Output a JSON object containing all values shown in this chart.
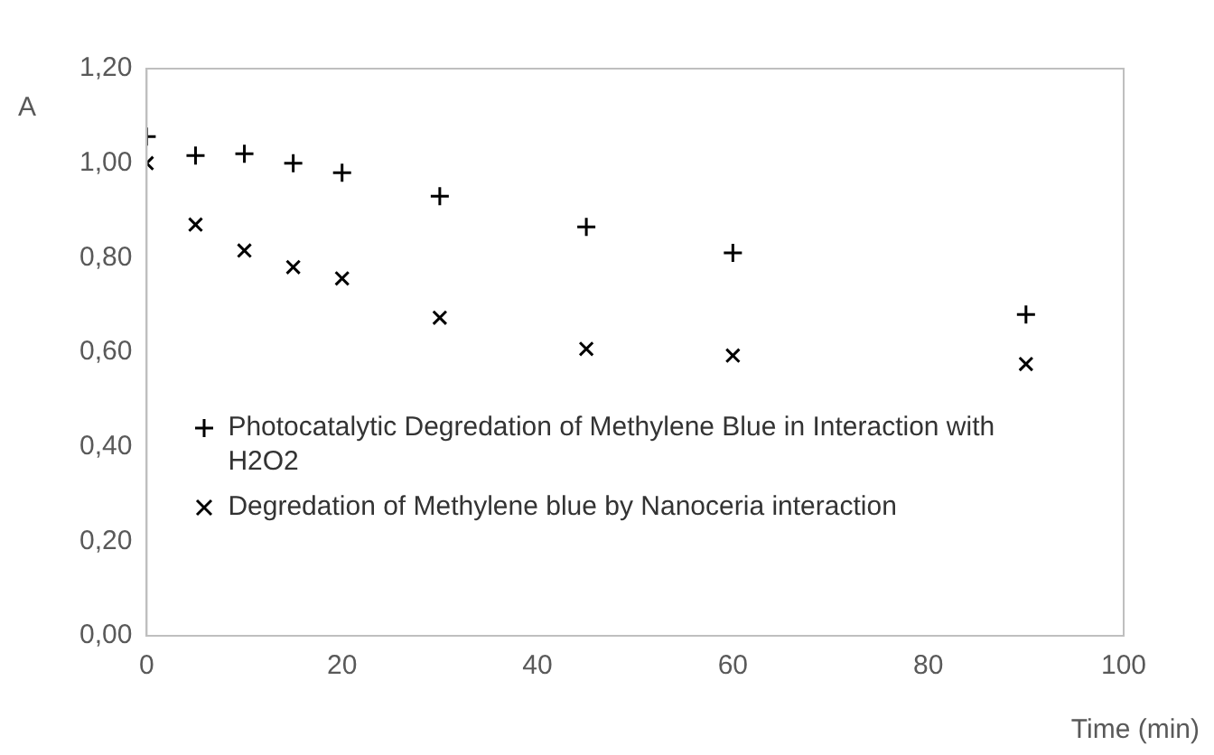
{
  "chart_data": {
    "type": "scatter",
    "xlabel": "Time (min)",
    "ylabel": "A",
    "xlim": [
      0,
      100
    ],
    "xticks": [
      0,
      20,
      40,
      60,
      80,
      100
    ],
    "ylim": [
      0,
      1.2
    ],
    "yticks": [
      {
        "value": 0,
        "label": "0,00"
      },
      {
        "value": 0.2,
        "label": "0,20"
      },
      {
        "value": 0.4,
        "label": "0,40"
      },
      {
        "value": 0.6,
        "label": "0,60"
      },
      {
        "value": 0.8,
        "label": "0,80"
      },
      {
        "value": 1,
        "label": "1,00"
      },
      {
        "value": 1.2,
        "label": "1,20"
      }
    ],
    "grid": false,
    "legend": "bottom left",
    "series": [
      {
        "name": "Photocatalytic Degredation of Methylene Blue in Interaction with H2O2",
        "color": "#000000",
        "marker": "plus",
        "x": [
          0,
          5,
          10,
          15,
          20,
          30,
          45,
          60,
          90
        ],
        "values": [
          1.056,
          1.016,
          1.02,
          1.0,
          0.98,
          0.93,
          0.865,
          0.81,
          0.68
        ]
      },
      {
        "name": "Degredation of Methylene blue by Nanoceria interaction",
        "color": "#000000",
        "marker": "cross",
        "x": [
          0,
          5,
          10,
          15,
          20,
          30,
          45,
          60,
          90
        ],
        "values": [
          1.0,
          0.87,
          0.815,
          0.78,
          0.756,
          0.673,
          0.607,
          0.593,
          0.575
        ]
      }
    ]
  }
}
